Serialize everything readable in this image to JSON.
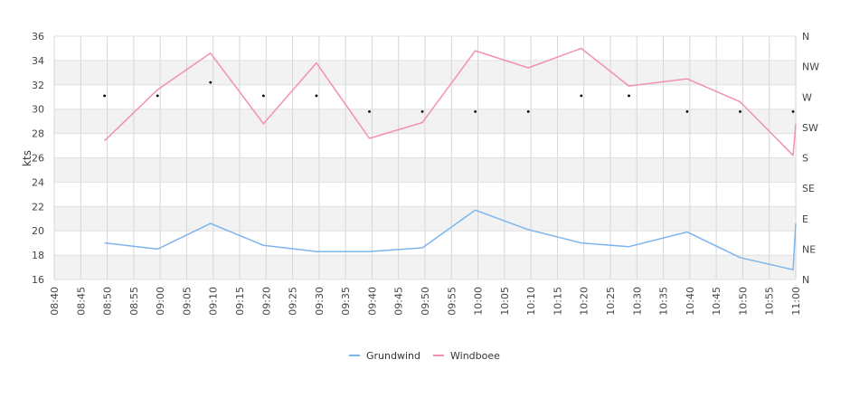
{
  "chart_data": {
    "type": "line",
    "title": "",
    "ylabel": "kts",
    "ylim": [
      16,
      36
    ],
    "yticks": [
      "16",
      "18",
      "20",
      "22",
      "24",
      "26",
      "28",
      "30",
      "32",
      "34",
      "36"
    ],
    "y2_ticks": [
      "NE",
      "E",
      "SE",
      "S",
      "SW",
      "W",
      "NW",
      "N"
    ],
    "y2_ticks_full": [
      "N",
      "NE",
      "E",
      "SE",
      "S",
      "SW",
      "W",
      "NW",
      "N"
    ],
    "x_range": [
      "08:40",
      "11:00"
    ],
    "xticks": [
      "08:40",
      "08:45",
      "08:50",
      "08:55",
      "09:00",
      "09:05",
      "09:10",
      "09:15",
      "09:20",
      "09:25",
      "09:30",
      "09:35",
      "09:40",
      "09:45",
      "09:50",
      "09:55",
      "10:00",
      "10:05",
      "10:10",
      "10:15",
      "10:20",
      "10:25",
      "10:30",
      "10:35",
      "10:40",
      "10:45",
      "10:50",
      "10:55",
      "11:00"
    ],
    "grid": true,
    "legend_position": "bottom-center",
    "series": [
      {
        "name": "Grundwind",
        "color": "#7cb5ec",
        "points": [
          [
            "08:49:30",
            19.0
          ],
          [
            "08:59:30",
            18.5
          ],
          [
            "09:09:30",
            20.6
          ],
          [
            "09:19:30",
            18.8
          ],
          [
            "09:29:30",
            18.3
          ],
          [
            "09:39:30",
            18.3
          ],
          [
            "09:49:30",
            18.6
          ],
          [
            "09:59:30",
            21.7
          ],
          [
            "10:09:30",
            20.1
          ],
          [
            "10:19:30",
            19.0
          ],
          [
            "10:28:30",
            18.7
          ],
          [
            "10:39:30",
            19.9
          ],
          [
            "10:49:30",
            17.8
          ],
          [
            "10:59:30",
            16.8
          ],
          [
            "11:00:00",
            20.6
          ]
        ]
      },
      {
        "name": "Windboee",
        "color": "#f28fb9",
        "points": [
          [
            "08:49:30",
            27.4
          ],
          [
            "08:59:30",
            31.6
          ],
          [
            "09:09:30",
            34.6
          ],
          [
            "09:19:30",
            28.8
          ],
          [
            "09:29:30",
            33.8
          ],
          [
            "09:39:30",
            27.6
          ],
          [
            "09:49:30",
            28.9
          ],
          [
            "09:59:30",
            34.8
          ],
          [
            "10:09:30",
            33.4
          ],
          [
            "10:19:30",
            35.0
          ],
          [
            "10:28:30",
            31.9
          ],
          [
            "10:39:30",
            32.5
          ],
          [
            "10:49:30",
            30.6
          ],
          [
            "10:59:30",
            26.2
          ],
          [
            "11:00:00",
            28.8
          ]
        ]
      },
      {
        "name": "direction",
        "color": "#000000",
        "points": [
          [
            "08:49:30",
            31.1
          ],
          [
            "08:59:30",
            31.1
          ],
          [
            "09:09:30",
            32.2
          ],
          [
            "09:19:30",
            31.1
          ],
          [
            "09:29:30",
            31.1
          ],
          [
            "09:39:30",
            29.8
          ],
          [
            "09:49:30",
            29.8
          ],
          [
            "09:59:30",
            29.8
          ],
          [
            "10:09:30",
            29.8
          ],
          [
            "10:19:30",
            31.1
          ],
          [
            "10:28:30",
            31.1
          ],
          [
            "10:39:30",
            29.8
          ],
          [
            "10:49:30",
            29.8
          ],
          [
            "10:59:30",
            29.8
          ]
        ]
      }
    ]
  },
  "legend": [
    {
      "label": "Grundwind",
      "color": "#7cb5ec"
    },
    {
      "label": "Windboee",
      "color": "#f28fb9"
    }
  ]
}
